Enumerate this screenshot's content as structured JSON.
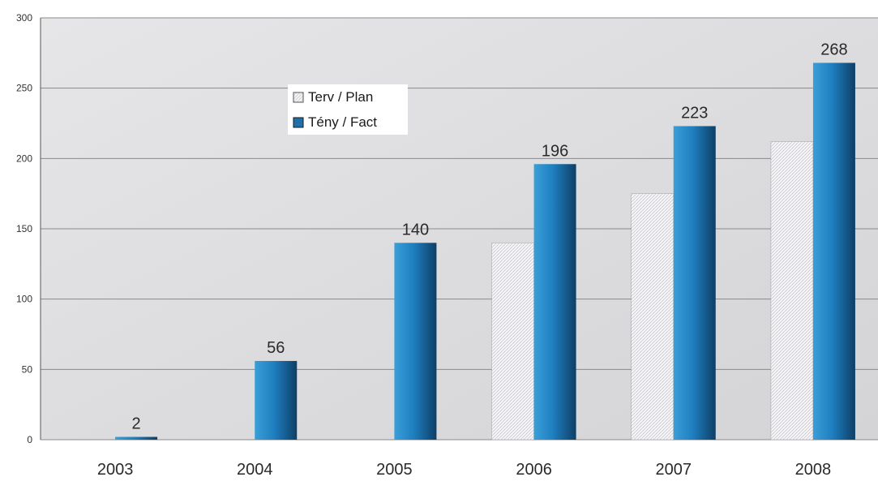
{
  "chart_data": {
    "type": "bar",
    "categories": [
      "2003",
      "2004",
      "2005",
      "2006",
      "2007",
      "2008"
    ],
    "series": [
      {
        "name": "Terv / Plan",
        "values": [
          0,
          0,
          0,
          140,
          175,
          212
        ],
        "color": "#f0f0f4"
      },
      {
        "name": "Tény / Fact",
        "values": [
          2,
          56,
          140,
          196,
          223,
          268
        ],
        "color": "#1f7fc0"
      }
    ],
    "data_labels": [
      "2",
      "56",
      "140",
      "196",
      "223",
      "268"
    ],
    "ylim": [
      0,
      300
    ],
    "yticks": [
      "0",
      "50",
      "100",
      "150",
      "200",
      "250",
      "300"
    ],
    "grid": true,
    "legend_position": "top-center",
    "plot_background": "#d9d9db",
    "title": "",
    "xlabel": "",
    "ylabel": ""
  }
}
